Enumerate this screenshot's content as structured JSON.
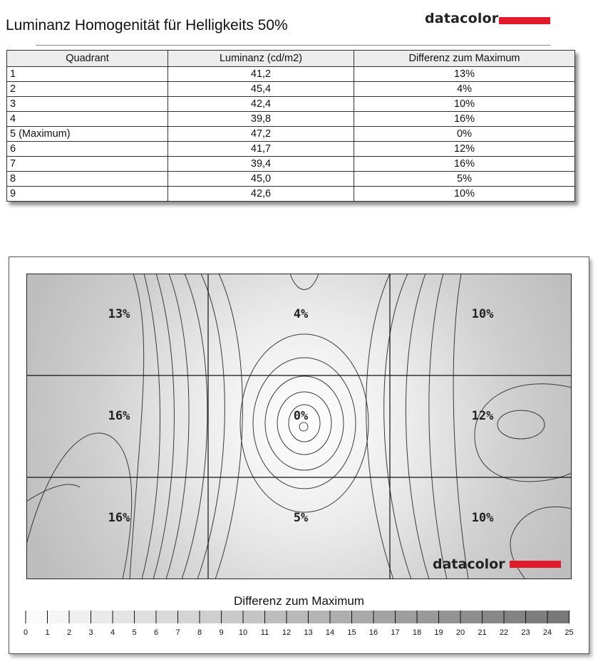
{
  "header": {
    "title": "Luminanz Homogenität für Helligkeits 50%",
    "brand": "datacolor",
    "brand_color": "#e01a2b"
  },
  "table": {
    "columns": [
      "Quadrant",
      "Luminanz (cd/m2)",
      "Differenz zum Maximum"
    ],
    "rows": [
      [
        "1",
        "41,2",
        "13%"
      ],
      [
        "2",
        "45,4",
        "4%"
      ],
      [
        "3",
        "42,4",
        "10%"
      ],
      [
        "4",
        "39,8",
        "16%"
      ],
      [
        "5 (Maximum)",
        "47,2",
        "0%"
      ],
      [
        "6",
        "41,7",
        "12%"
      ],
      [
        "7",
        "39,4",
        "16%"
      ],
      [
        "8",
        "45,0",
        "5%"
      ],
      [
        "9",
        "42,6",
        "10%"
      ]
    ]
  },
  "map": {
    "brand": "datacolor",
    "cell_labels": [
      "13%",
      "4%",
      "10%",
      "16%",
      "0%",
      "12%",
      "16%",
      "5%",
      "10%"
    ]
  },
  "colorbar": {
    "title": "Differenz zum Maximum",
    "ticks": [
      "0",
      "1",
      "2",
      "3",
      "4",
      "5",
      "6",
      "7",
      "8",
      "9",
      "10",
      "11",
      "12",
      "13",
      "14",
      "15",
      "16",
      "17",
      "18",
      "19",
      "20",
      "21",
      "22",
      "23",
      "24",
      "25"
    ]
  },
  "chart_data": {
    "type": "heatmap",
    "title": "Luminanz Homogenität für Helligkeits 50%",
    "grid_rows": 3,
    "grid_cols": 3,
    "quadrants": [
      "1",
      "2",
      "3",
      "4",
      "5 (Maximum)",
      "6",
      "7",
      "8",
      "9"
    ],
    "luminance_cd_m2": [
      41.2,
      45.4,
      42.4,
      39.8,
      47.2,
      41.7,
      39.4,
      45.0,
      42.6
    ],
    "difference_to_max_percent": [
      13,
      4,
      10,
      16,
      0,
      12,
      16,
      5,
      10
    ],
    "colorbar_range": [
      0,
      25
    ],
    "colorbar_label": "Differenz zum Maximum"
  }
}
